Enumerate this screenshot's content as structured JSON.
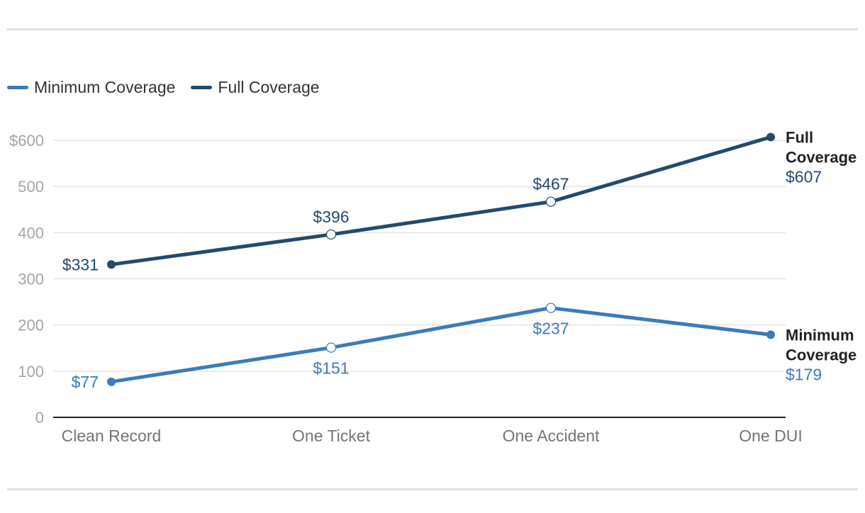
{
  "colors": {
    "minimum": "#3a7cba",
    "full": "#234a6d",
    "grid": "#e3e3e3",
    "axis": "#222222"
  },
  "chart_data": {
    "type": "line",
    "categories": [
      "Clean Record",
      "One Ticket",
      "One Accident",
      "One DUI"
    ],
    "yticks": [
      "$600",
      "500",
      "400",
      "300",
      "200",
      "100",
      "0"
    ],
    "ytick_values": [
      600,
      500,
      400,
      300,
      200,
      100,
      0
    ],
    "ylim": [
      0,
      600
    ],
    "grid": true,
    "legend_position": "top-left",
    "series": [
      {
        "key": "minimum",
        "name": "Minimum Coverage",
        "end_name_lines": [
          "Minimum",
          "Coverage"
        ],
        "values": [
          77,
          151,
          237,
          179
        ],
        "labels": [
          "$77",
          "$151",
          "$237",
          "$179"
        ]
      },
      {
        "key": "full",
        "name": "Full Coverage",
        "end_name_lines": [
          "Full",
          "Coverage"
        ],
        "values": [
          331,
          396,
          467,
          607
        ],
        "labels": [
          "$331",
          "$396",
          "$467",
          "$607"
        ]
      }
    ]
  }
}
